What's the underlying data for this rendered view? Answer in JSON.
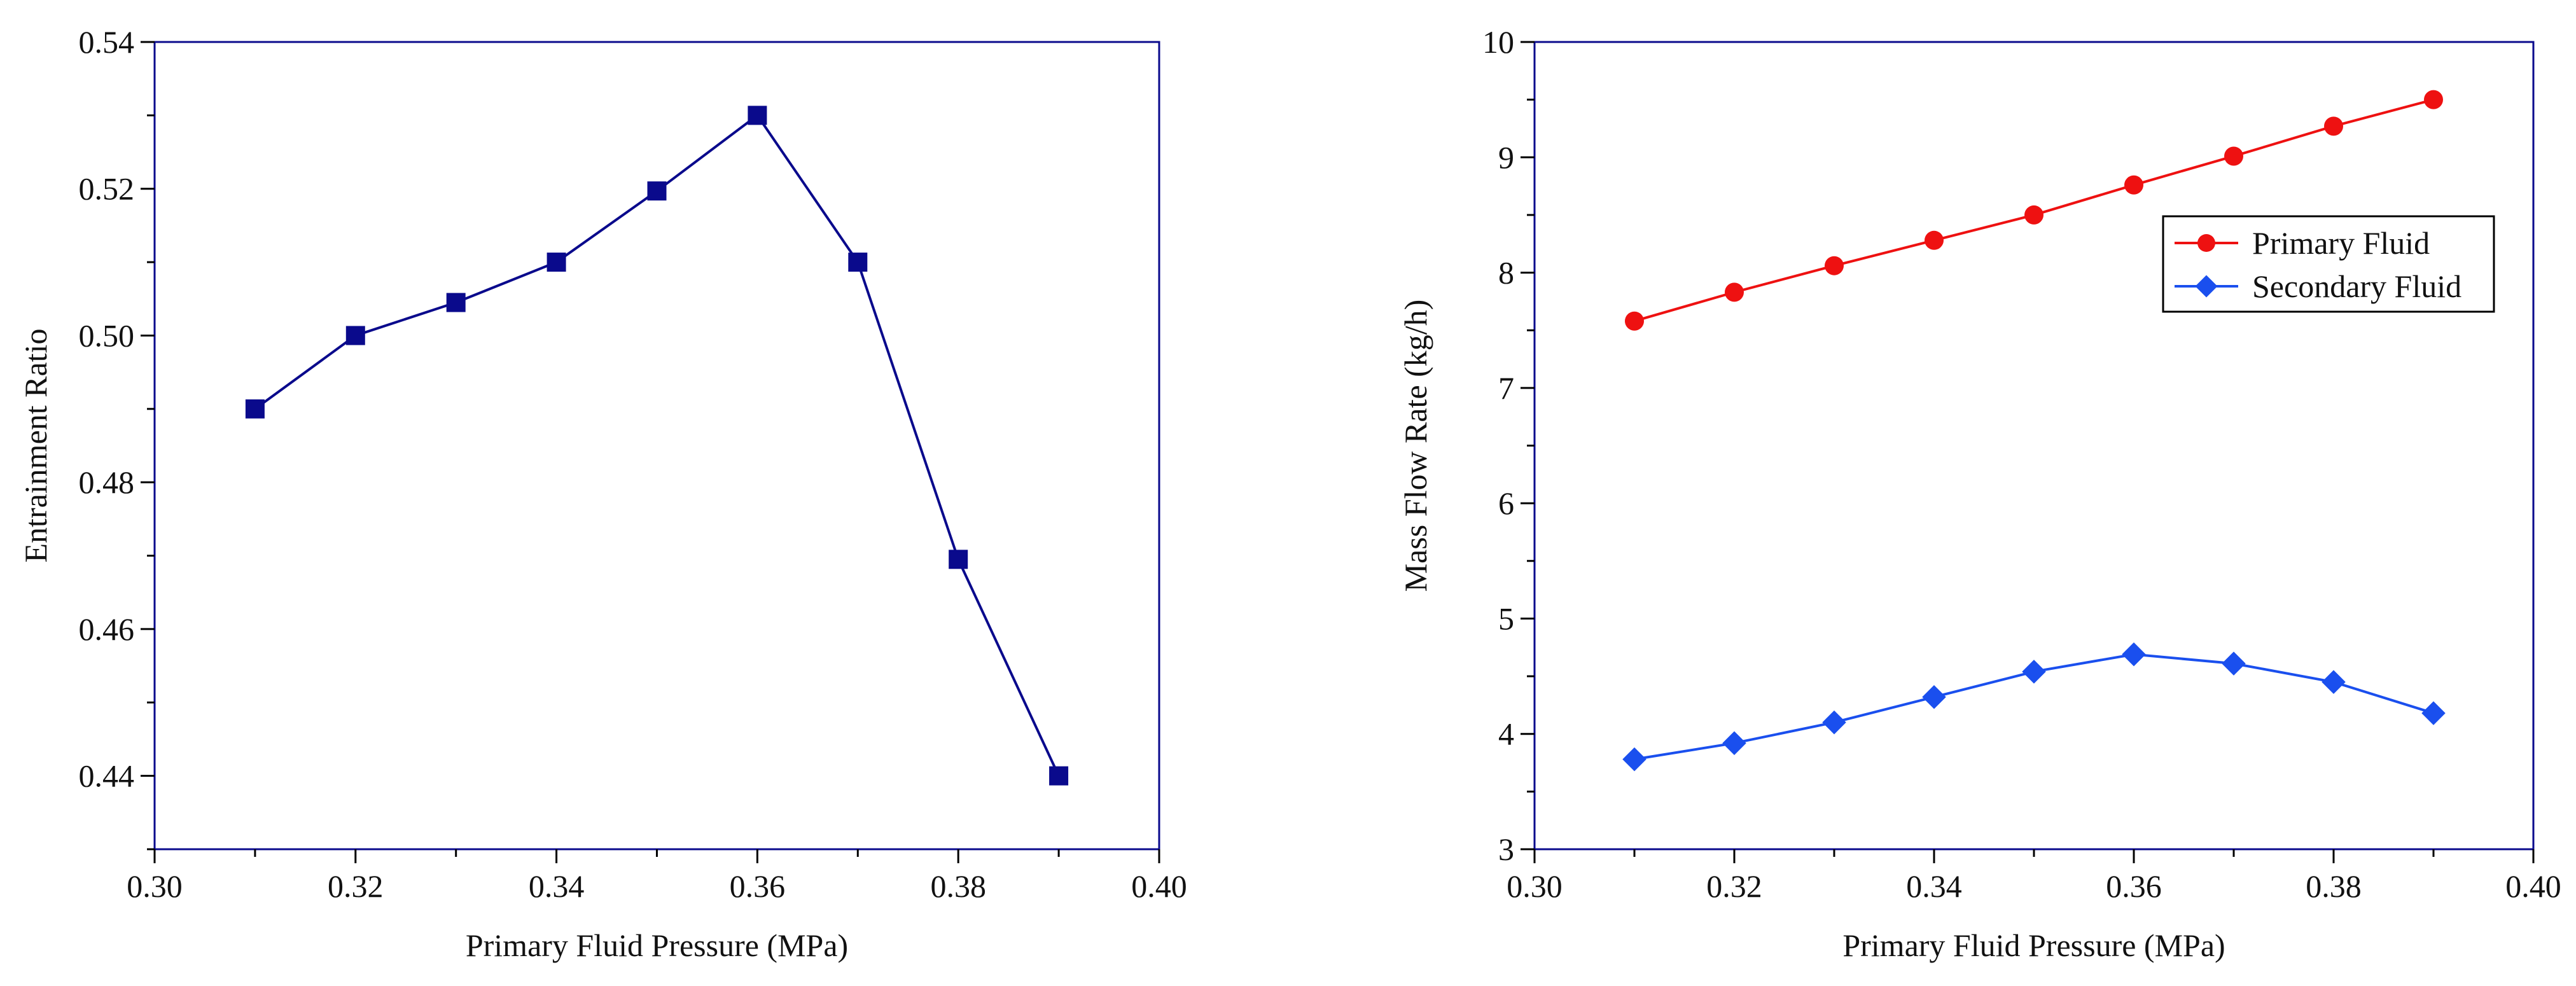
{
  "chart_data": [
    {
      "type": "line",
      "xlabel": "Primary Fluid Pressure (MPa)",
      "ylabel": "Entrainment Ratio",
      "xlim": [
        0.3,
        0.4
      ],
      "ylim": [
        0.43,
        0.54
      ],
      "xticks": [
        0.3,
        0.32,
        0.34,
        0.36,
        0.38,
        0.4
      ],
      "yticks": [
        0.44,
        0.46,
        0.48,
        0.5,
        0.52,
        0.54
      ],
      "xtick_labels": [
        "0.30",
        "0.32",
        "0.34",
        "0.36",
        "0.38",
        "0.40"
      ],
      "ytick_labels": [
        "0.44",
        "0.46",
        "0.48",
        "0.50",
        "0.52",
        "0.54"
      ],
      "grid": false,
      "legend": null,
      "series": [
        {
          "name": "Entrainment Ratio",
          "color": "#0a0a8c",
          "marker": "square",
          "x": [
            0.31,
            0.32,
            0.33,
            0.34,
            0.35,
            0.36,
            0.37,
            0.38,
            0.39
          ],
          "values": [
            0.49,
            0.5,
            0.5045,
            0.51,
            0.5197,
            0.53,
            0.51,
            0.4695,
            0.44
          ]
        }
      ]
    },
    {
      "type": "line",
      "xlabel": "Primary Fluid Pressure (MPa)",
      "ylabel": "Mass Flow Rate (kg/h)",
      "xlim": [
        0.3,
        0.4
      ],
      "ylim": [
        3,
        10
      ],
      "xticks": [
        0.3,
        0.32,
        0.34,
        0.36,
        0.38,
        0.4
      ],
      "yticks": [
        3,
        4,
        5,
        6,
        7,
        8,
        9,
        10
      ],
      "xtick_labels": [
        "0.30",
        "0.32",
        "0.34",
        "0.36",
        "0.38",
        "0.40"
      ],
      "ytick_labels": [
        "3",
        "4",
        "5",
        "6",
        "7",
        "8",
        "9",
        "10"
      ],
      "grid": false,
      "legend": "top-right",
      "series": [
        {
          "name": "Primary Fluid",
          "color": "#ee1111",
          "marker": "circle",
          "x": [
            0.31,
            0.32,
            0.33,
            0.34,
            0.35,
            0.36,
            0.37,
            0.38,
            0.39
          ],
          "values": [
            7.58,
            7.83,
            8.06,
            8.28,
            8.5,
            8.76,
            9.01,
            9.27,
            9.5
          ]
        },
        {
          "name": "Secondary Fluid",
          "color": "#1a4fee",
          "marker": "diamond",
          "x": [
            0.31,
            0.32,
            0.33,
            0.34,
            0.35,
            0.36,
            0.37,
            0.38,
            0.39
          ],
          "values": [
            3.78,
            3.92,
            4.1,
            4.32,
            4.54,
            4.69,
            4.61,
            4.45,
            4.18
          ]
        }
      ]
    }
  ]
}
